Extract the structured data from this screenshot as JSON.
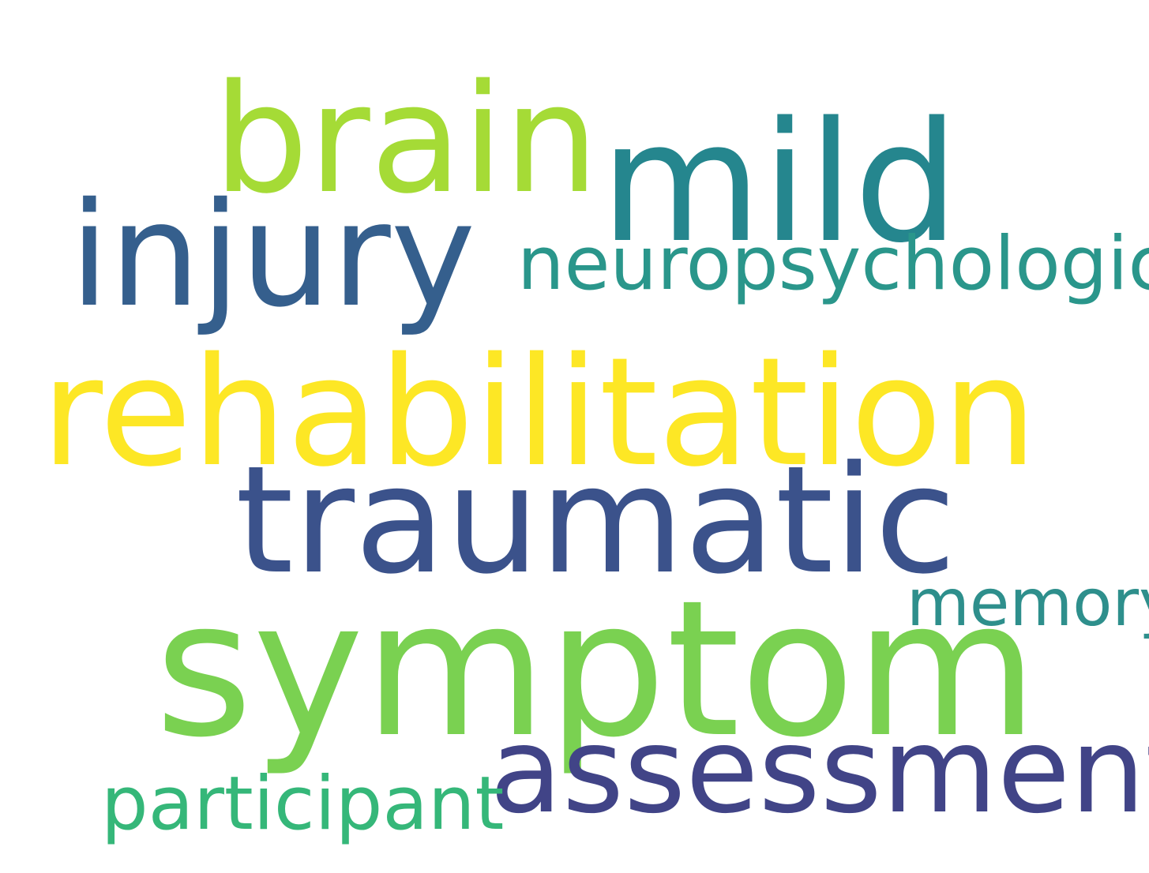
{
  "words": [
    {
      "text": "brain",
      "color": "#a5db36"
    },
    {
      "text": "mild",
      "color": "#25868e"
    },
    {
      "text": "injury",
      "color": "#355f8d"
    },
    {
      "text": "neuropsychological",
      "color": "#2a968b"
    },
    {
      "text": "rehabilitation",
      "color": "#fde725"
    },
    {
      "text": "traumatic",
      "color": "#3b528b"
    },
    {
      "text": "memory",
      "color": "#2e8f8c"
    },
    {
      "text": "symptom",
      "color": "#7ad151"
    },
    {
      "text": "assessment",
      "color": "#414487"
    },
    {
      "text": "participant",
      "color": "#35b779"
    }
  ]
}
